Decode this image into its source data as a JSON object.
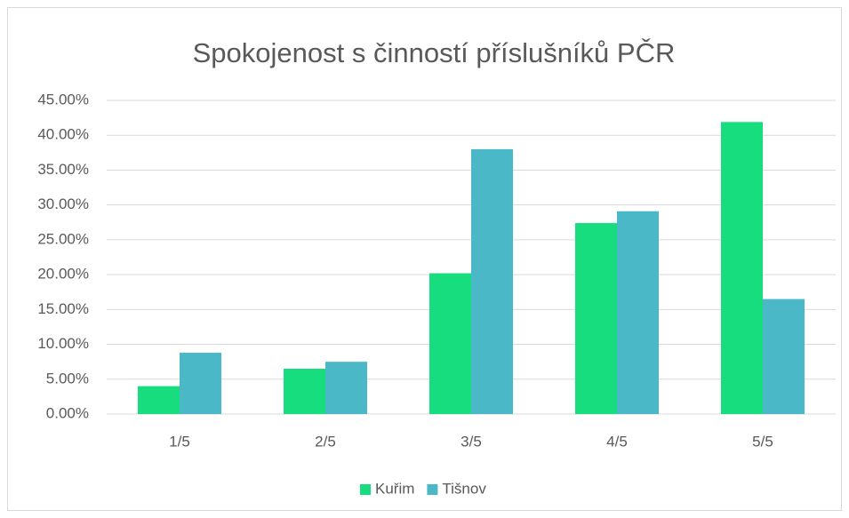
{
  "chart_data": {
    "type": "bar",
    "title": "Spokojenost s činností příslušníků PČR",
    "categories": [
      "1/5",
      "2/5",
      "3/5",
      "4/5",
      "5/5"
    ],
    "series": [
      {
        "name": "Kuřim",
        "color": "#17dd7f",
        "values": [
          4.0,
          6.5,
          20.2,
          27.4,
          41.9
        ]
      },
      {
        "name": "Tišnov",
        "color": "#4bb8c8",
        "values": [
          8.8,
          7.5,
          38.0,
          29.1,
          16.5
        ]
      }
    ],
    "ylim": [
      0,
      45
    ],
    "yticks": [
      {
        "value": 0,
        "label": "0.00%"
      },
      {
        "value": 5,
        "label": "5.00%"
      },
      {
        "value": 10,
        "label": "10.00%"
      },
      {
        "value": 15,
        "label": "15.00%"
      },
      {
        "value": 20,
        "label": "20.00%"
      },
      {
        "value": 25,
        "label": "25.00%"
      },
      {
        "value": 30,
        "label": "30.00%"
      },
      {
        "value": 35,
        "label": "35.00%"
      },
      {
        "value": 40,
        "label": "40.00%"
      },
      {
        "value": 45,
        "label": "45.00%"
      }
    ],
    "grid": true,
    "legend": "bottom"
  }
}
